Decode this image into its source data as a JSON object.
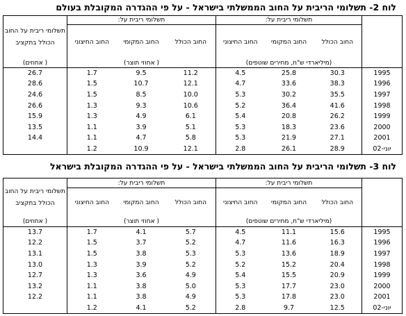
{
  "tables": [
    {
      "title": "לוח 2- תשלומי הריבית על החוב הממשלתי בישראל - על פי ההגדרה המקובלת בעולם",
      "group_headers": [
        "תשלומי ריבית על:",
        "תשלומי ריבית על:"
      ],
      "column_headers": [
        "החוב הכולל",
        "החוב המקומי",
        "החוב החיצוני",
        "החוב הכולל",
        "החוב המקומי",
        "החוב החיצוני"
      ],
      "budget_header": "תשלומי ריבית על החוב הכולל בתקציב",
      "units": [
        "(מיליארדי ש\"ח, מחירים שוטפים)",
        "( אחוזי תוצר)",
        "( אחוזים)"
      ],
      "rows": [
        [
          "1995",
          "30.3",
          "25.8",
          "4.5",
          "11.2",
          "9.5",
          "1.7",
          "26.7"
        ],
        [
          "1996",
          "38.3",
          "33.6",
          "4.7",
          "12.1",
          "10.7",
          "1.5",
          "28.6"
        ],
        [
          "1997",
          "35.5",
          "30.2",
          "5.3",
          "10.0",
          "8.5",
          "1.5",
          "24.6"
        ],
        [
          "1998",
          "41.6",
          "36.4",
          "5.2",
          "10.6",
          "9.3",
          "1.3",
          "26.6"
        ],
        [
          "1999",
          "26.2",
          "20.8",
          "5.4",
          "6.1",
          "4.9",
          "1.3",
          "15.9"
        ],
        [
          "2000",
          "23.6",
          "18.3",
          "5.3",
          "5.1",
          "3.9",
          "1.1",
          "13.5"
        ],
        [
          "2001",
          "27.1",
          "21.9",
          "5.3",
          "5.8",
          "4.7",
          "1.1",
          "14.4"
        ],
        [
          "יוני-02",
          "28.9",
          "26.1",
          "2.8",
          "12.1",
          "10.9",
          "1.2",
          null
        ]
      ]
    },
    {
      "title": "לוח 3- תשלומי הריבית על החוב הממשלתי בישראל - על פי ההגדרה המקובלת בישראל",
      "group_headers": [
        "תשלומי ריבית על:",
        "תשלומי ריבית על:"
      ],
      "column_headers": [
        "החוב הכולל",
        "החוב המקומי",
        "החוב החיצוני",
        "החוב הכולל",
        "החוב המקומי",
        "החוב החיצוני"
      ],
      "budget_header": "תשלומי ריבית על החוב הכולל בתקציב",
      "units": [
        "(מיליארדי ש\"ח, מחירים שוטפים)",
        "( אחוזי תוצר)",
        "( אחוזים)"
      ],
      "rows": [
        [
          "1995",
          "15.6",
          "11.1",
          "4.5",
          "5.7",
          "4.1",
          "1.7",
          "13.7"
        ],
        [
          "1996",
          "16.3",
          "11.6",
          "4.7",
          "5.2",
          "3.7",
          "1.5",
          "12.2"
        ],
        [
          "1997",
          "18.9",
          "13.6",
          "5.3",
          "5.3",
          "3.8",
          "1.5",
          "13.1"
        ],
        [
          "1998",
          "20.4",
          "15.2",
          "5.2",
          "5.2",
          "3.9",
          "1.3",
          "13.0"
        ],
        [
          "1999",
          "20.9",
          "15.5",
          "5.4",
          "4.9",
          "3.6",
          "1.3",
          "12.7"
        ],
        [
          "2000",
          "23.0",
          "17.7",
          "5.3",
          "5.0",
          "3.8",
          "1.1",
          "13.2"
        ],
        [
          "2001",
          "23.0",
          "17.8",
          "5.3",
          "4.9",
          "3.8",
          "1.1",
          "12.2"
        ],
        [
          "יוני-02",
          "12.5",
          "9.7",
          "2.8",
          "5.2",
          "4.1",
          "1.2",
          null
        ]
      ]
    }
  ]
}
